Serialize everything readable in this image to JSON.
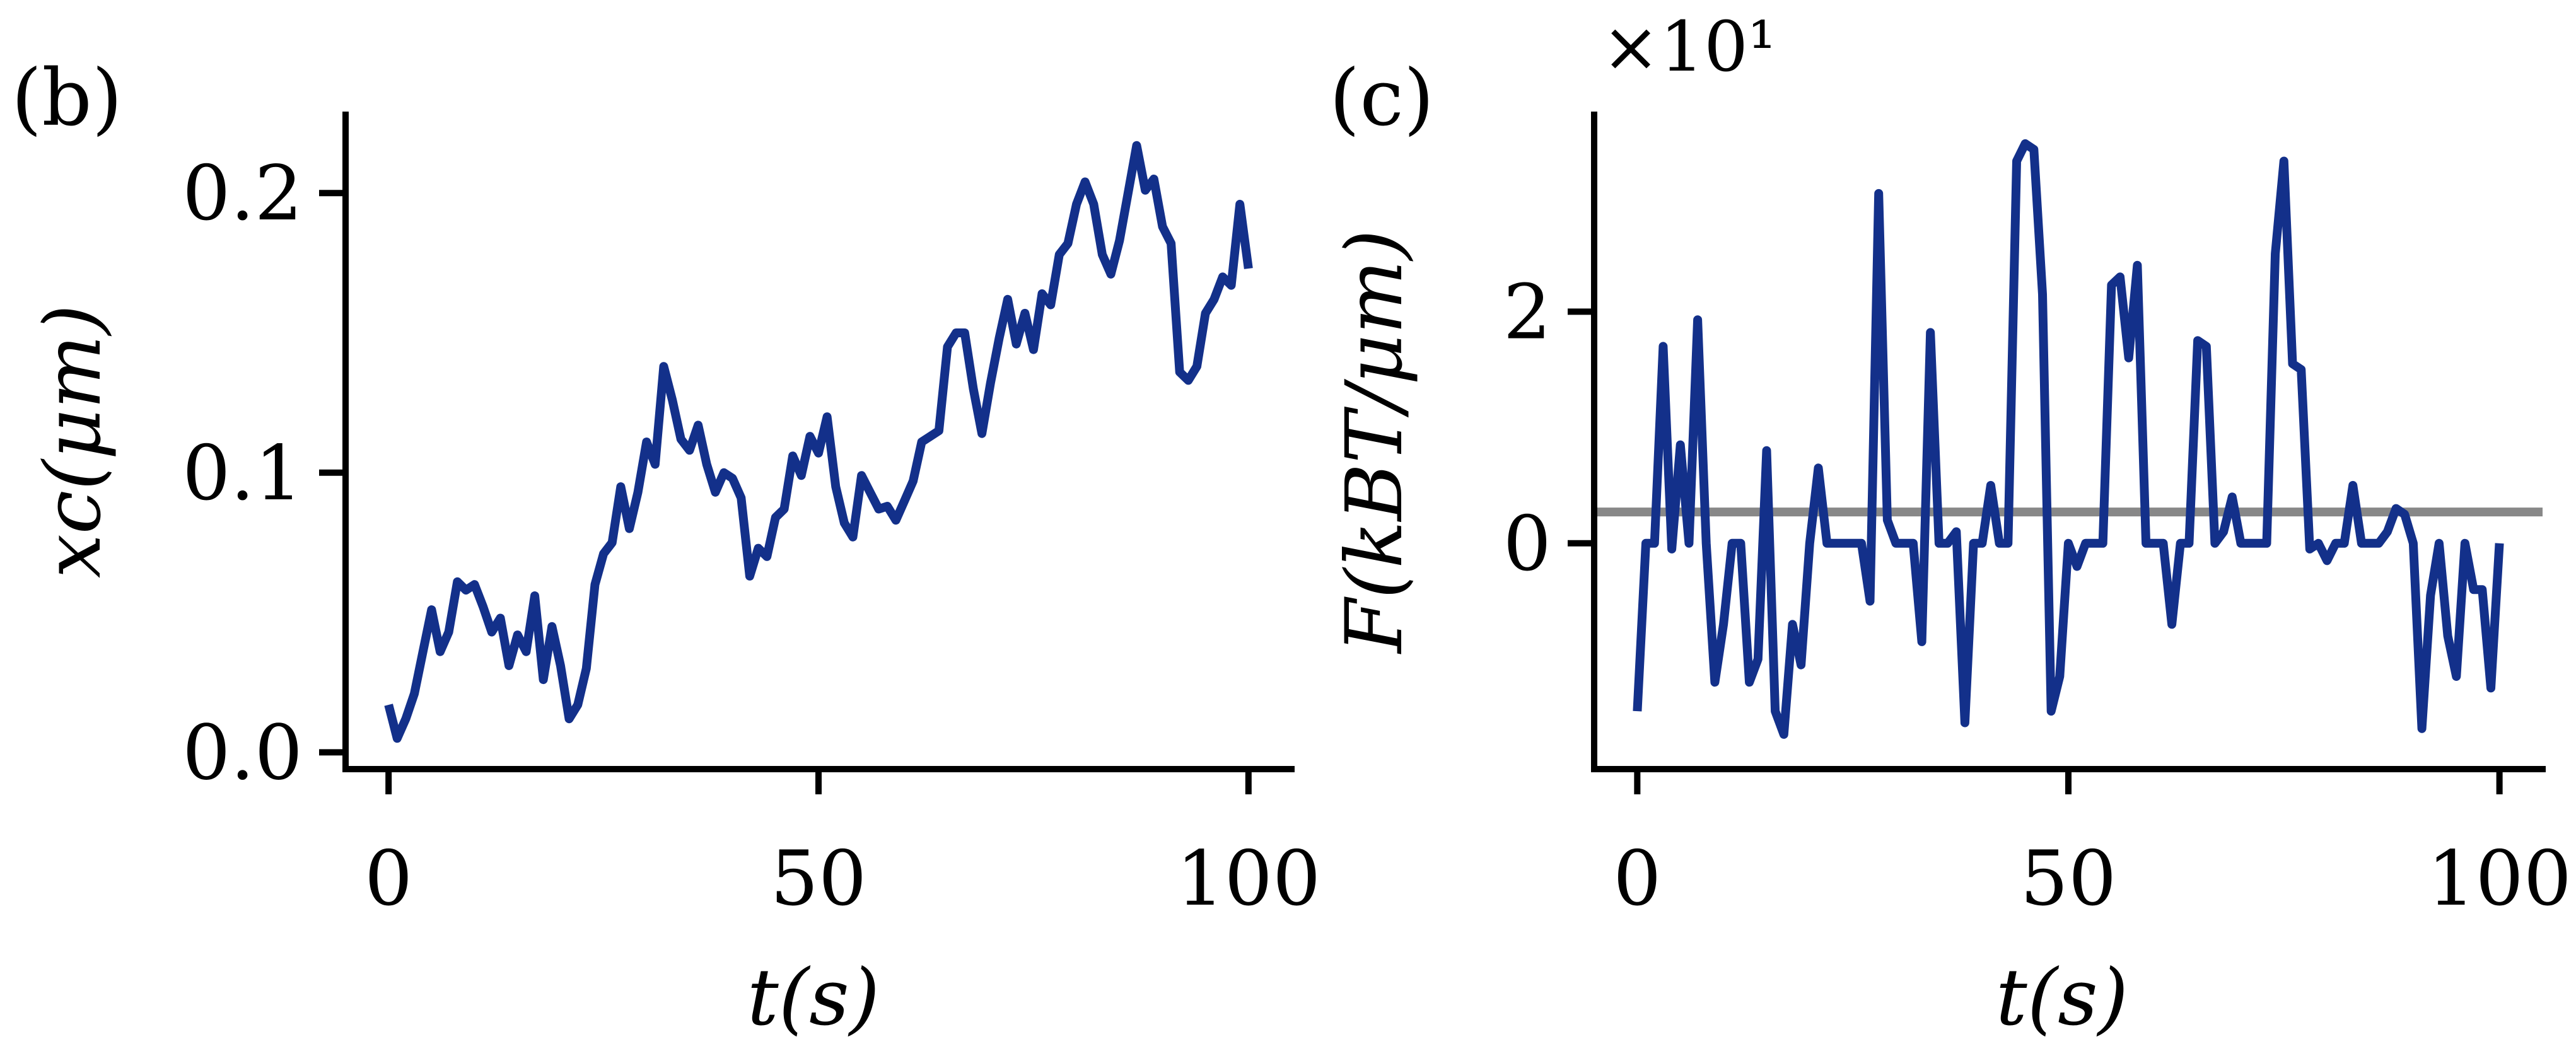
{
  "chart_data": [
    {
      "type": "line",
      "panel_label": "(b)",
      "xlabel": "t(s)",
      "ylabel": "xc(μm)",
      "xlim": [
        -5,
        105
      ],
      "ylim": [
        -0.006,
        0.228
      ],
      "x_ticks": [
        0,
        50,
        100
      ],
      "x_tick_labels": [
        "0",
        "50",
        "100"
      ],
      "y_ticks": [
        0.0,
        0.1,
        0.2
      ],
      "y_tick_labels": [
        "0.0",
        "0.1",
        "0.2"
      ],
      "grid": false,
      "color": "#13308a",
      "series": [
        {
          "x": [
            0,
            1,
            2,
            3,
            4,
            5,
            6,
            7,
            8,
            9,
            10,
            11,
            12,
            13,
            14,
            15,
            16,
            17,
            18,
            19,
            20,
            21,
            22,
            23,
            24,
            25,
            26,
            27,
            28,
            29,
            30,
            31,
            32,
            33,
            34,
            35,
            36,
            37,
            38,
            39,
            40,
            41,
            42,
            43,
            44,
            45,
            46,
            47,
            48,
            49,
            50,
            51,
            52,
            53,
            54,
            55,
            56,
            57,
            58,
            59,
            60,
            61,
            62,
            63,
            64,
            65,
            66,
            67,
            68,
            69,
            70,
            71,
            72,
            73,
            74,
            75,
            76,
            77,
            78,
            79,
            80,
            81,
            82,
            83,
            84,
            85,
            86,
            87,
            88,
            89,
            90,
            91,
            92,
            93,
            94,
            95,
            96,
            97,
            98,
            99,
            100
          ],
          "values": [
            0.017,
            0.005,
            0.012,
            0.021,
            0.036,
            0.051,
            0.036,
            0.043,
            0.061,
            0.058,
            0.06,
            0.052,
            0.043,
            0.048,
            0.031,
            0.042,
            0.036,
            0.056,
            0.026,
            0.045,
            0.031,
            0.012,
            0.017,
            0.03,
            0.06,
            0.071,
            0.075,
            0.095,
            0.08,
            0.093,
            0.111,
            0.103,
            0.138,
            0.126,
            0.112,
            0.108,
            0.117,
            0.103,
            0.093,
            0.1,
            0.098,
            0.091,
            0.063,
            0.073,
            0.07,
            0.084,
            0.087,
            0.106,
            0.099,
            0.113,
            0.107,
            0.12,
            0.095,
            0.082,
            0.077,
            0.099,
            0.093,
            0.087,
            0.088,
            0.083,
            0.09,
            0.097,
            0.111,
            0.113,
            0.115,
            0.145,
            0.15,
            0.15,
            0.13,
            0.114,
            0.132,
            0.148,
            0.162,
            0.146,
            0.157,
            0.144,
            0.164,
            0.16,
            0.178,
            0.182,
            0.196,
            0.204,
            0.196,
            0.178,
            0.171,
            0.183,
            0.2,
            0.217,
            0.201,
            0.205,
            0.188,
            0.182,
            0.136,
            0.133,
            0.138,
            0.157,
            0.162,
            0.17,
            0.167,
            0.196,
            0.173
          ]
        }
      ]
    },
    {
      "type": "line",
      "panel_label": "(c)",
      "xlabel": "t(s)",
      "ylabel": "F(kBT/μm)",
      "scale_multiplier": "×10¹",
      "xlim": [
        -5,
        105
      ],
      "ylim": [
        -1.95,
        3.7
      ],
      "x_ticks": [
        0,
        50,
        100
      ],
      "x_tick_labels": [
        "0",
        "50",
        "100"
      ],
      "y_ticks": [
        0,
        2
      ],
      "y_tick_labels": [
        "0",
        "2"
      ],
      "grid": false,
      "color": "#13308a",
      "reference_line": {
        "y": 0.27,
        "color": "#888888"
      },
      "series": [
        {
          "x": [
            0,
            1,
            2,
            3,
            4,
            5,
            6,
            7,
            8,
            9,
            10,
            11,
            12,
            13,
            14,
            15,
            16,
            17,
            18,
            19,
            20,
            21,
            22,
            23,
            24,
            25,
            26,
            27,
            28,
            29,
            30,
            31,
            32,
            33,
            34,
            35,
            36,
            37,
            38,
            39,
            40,
            41,
            42,
            43,
            44,
            45,
            46,
            47,
            48,
            49,
            50,
            51,
            52,
            53,
            54,
            55,
            56,
            57,
            58,
            59,
            60,
            61,
            62,
            63,
            64,
            65,
            66,
            67,
            68,
            69,
            70,
            71,
            72,
            73,
            74,
            75,
            76,
            77,
            78,
            79,
            80,
            81,
            82,
            83,
            84,
            85,
            86,
            87,
            88,
            89,
            90,
            91,
            92,
            93,
            94,
            95,
            96,
            97,
            98,
            99,
            100
          ],
          "values": [
            -1.45,
            0.0,
            0.0,
            1.7,
            -0.05,
            0.85,
            0.0,
            1.93,
            0.0,
            -1.2,
            -0.7,
            0.0,
            0.0,
            -1.2,
            -1.0,
            0.8,
            -1.45,
            -1.65,
            -0.7,
            -1.05,
            0.0,
            0.65,
            0.0,
            0.0,
            0.0,
            0.0,
            0.0,
            -0.5,
            3.02,
            0.2,
            0.0,
            0.0,
            0.0,
            -0.85,
            1.82,
            0.0,
            0.0,
            0.1,
            -1.55,
            0.0,
            0.0,
            0.5,
            0.0,
            0.0,
            3.3,
            3.45,
            3.4,
            2.15,
            -1.45,
            -1.15,
            0.0,
            -0.2,
            0.0,
            0.0,
            0.0,
            2.23,
            2.3,
            1.6,
            2.4,
            0.0,
            0.0,
            0.0,
            -0.7,
            0.0,
            0.0,
            1.75,
            1.7,
            0.0,
            0.1,
            0.4,
            0.0,
            0.0,
            0.0,
            0.0,
            2.5,
            3.3,
            1.55,
            1.5,
            -0.05,
            0.0,
            -0.15,
            0.0,
            0.0,
            0.5,
            0.0,
            0.0,
            0.0,
            0.1,
            0.3,
            0.25,
            0.0,
            -1.6,
            -0.45,
            0.0,
            -0.8,
            -1.15,
            0.0,
            -0.4,
            -0.4,
            -1.25,
            0.0
          ]
        }
      ]
    }
  ]
}
